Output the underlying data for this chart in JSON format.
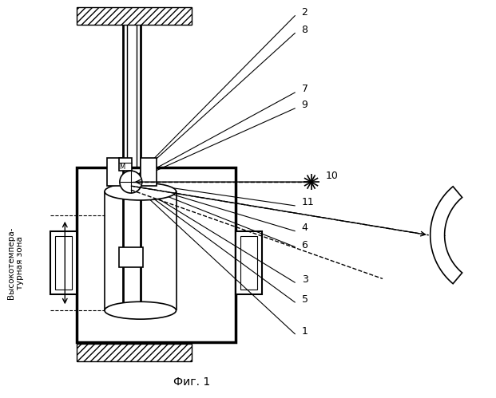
{
  "title": "Фиг. 1",
  "bg_color": "#ffffff",
  "line_color": "#000000",
  "fig_width": 6.21,
  "fig_height": 4.99,
  "side_label": "Высокотемпера-\nтурная зона"
}
